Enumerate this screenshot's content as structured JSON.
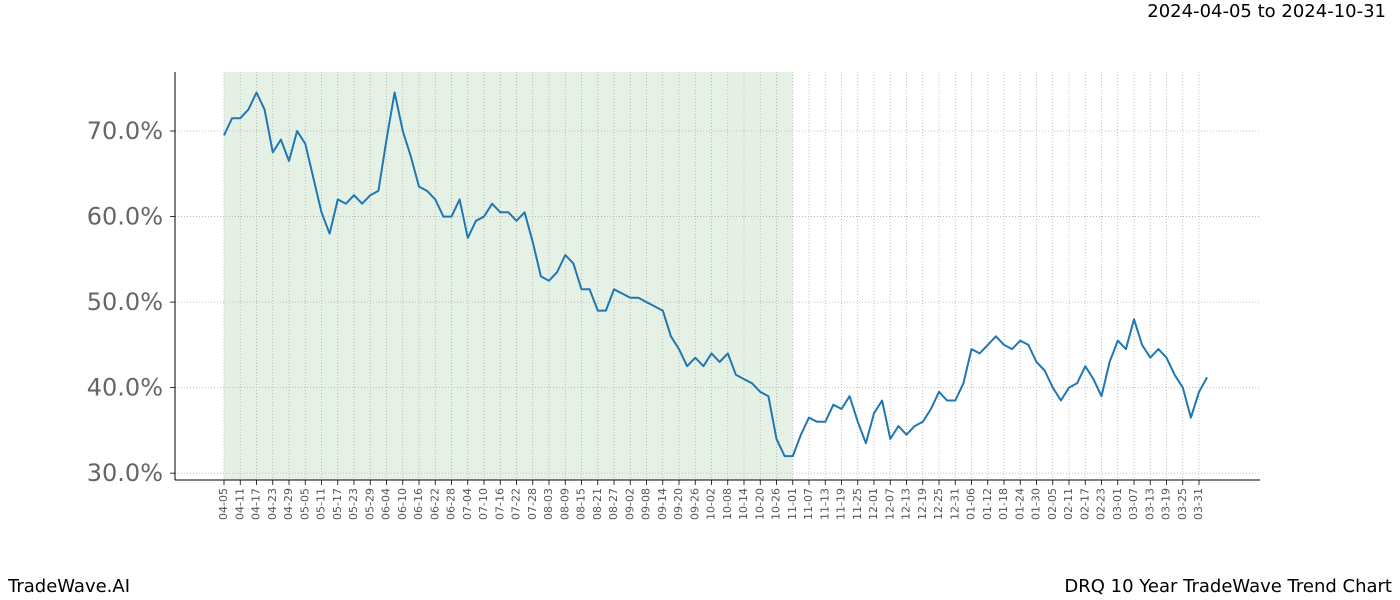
{
  "chart_data": {
    "type": "line",
    "subtitle": "2024-04-05 to 2024-10-31",
    "brand": "TradeWave.AI",
    "title": "DRQ 10 Year TradeWave Trend Chart",
    "categories": [
      "04-05",
      null,
      "04-11",
      null,
      "04-17",
      null,
      "04-23",
      null,
      "04-29",
      null,
      "05-05",
      null,
      "05-11",
      null,
      "05-17",
      null,
      "05-23",
      null,
      "05-29",
      null,
      "06-04",
      null,
      "06-10",
      null,
      "06-16",
      null,
      "06-22",
      null,
      "06-28",
      null,
      "07-04",
      null,
      "07-10",
      null,
      "07-16",
      null,
      "07-22",
      null,
      "07-28",
      null,
      "08-03",
      null,
      "08-09",
      null,
      "08-15",
      null,
      "08-21",
      null,
      "08-27",
      null,
      "09-02",
      null,
      "09-08",
      null,
      "09-14",
      null,
      "09-20",
      null,
      "09-26",
      null,
      "10-02",
      null,
      "10-08",
      null,
      "10-14",
      null,
      "10-20",
      null,
      "10-26",
      null,
      "11-01",
      null,
      "11-07",
      null,
      "11-13",
      null,
      "11-19",
      null,
      "11-25",
      null,
      "12-01",
      null,
      "12-07",
      null,
      "12-13",
      null,
      "12-19",
      null,
      "12-25",
      null,
      "12-31",
      null,
      "01-06",
      null,
      "01-12",
      null,
      "01-18",
      null,
      "01-24",
      null,
      "01-30",
      null,
      "02-05",
      null,
      "02-11",
      null,
      "02-17",
      null,
      "02-23",
      null,
      "03-01",
      null,
      "03-07",
      null,
      "03-13",
      null,
      "03-19",
      null,
      "03-25",
      null,
      "03-31",
      null
    ],
    "values": [
      69.5,
      71.5,
      71.5,
      72.5,
      74.5,
      72.5,
      67.5,
      69,
      66.5,
      70,
      68.5,
      64.5,
      60.5,
      58,
      62,
      61.5,
      62.5,
      61.5,
      62.5,
      63,
      69,
      74.5,
      70,
      67,
      63.5,
      63,
      62,
      60,
      60,
      62,
      57.5,
      59.5,
      60,
      61.5,
      60.5,
      60.5,
      59.5,
      60.5,
      57,
      53,
      52.5,
      53.5,
      55.5,
      54.5,
      51.5,
      51.5,
      49,
      49,
      51.5,
      51,
      50.5,
      50.5,
      50,
      49.5,
      49,
      46,
      44.5,
      42.5,
      43.5,
      42.5,
      44,
      43,
      44,
      41.5,
      41,
      40.5,
      39.5,
      39,
      34,
      32,
      32,
      34.5,
      36.5,
      36,
      36,
      38,
      37.5,
      39,
      36,
      33.5,
      37,
      38.5,
      34,
      35.5,
      34.5,
      35.5,
      36,
      37.5,
      39.5,
      38.5,
      38.5,
      40.5,
      44.5,
      44,
      45,
      46,
      45,
      44.5,
      45.5,
      45,
      43,
      42,
      40,
      38.5,
      40,
      40.5,
      42.5,
      41,
      39,
      43,
      45.5,
      44.5,
      48,
      45,
      43.5,
      44.5,
      43.5,
      41.5,
      40,
      36.5,
      39.5,
      41.2
    ],
    "color": "#1f77b4",
    "shaded": {
      "start": "04-05",
      "end": "11-01",
      "color": "#e6f1e6"
    },
    "ylim": [
      29.2,
      76.9
    ],
    "yticks": [
      {
        "value": 30,
        "label": "30.0%"
      },
      {
        "value": 40,
        "label": "40.0%"
      },
      {
        "value": 50,
        "label": "50.0%"
      },
      {
        "value": 60,
        "label": "60.0%"
      },
      {
        "value": 70,
        "label": "70.0%"
      }
    ],
    "grid": true
  }
}
